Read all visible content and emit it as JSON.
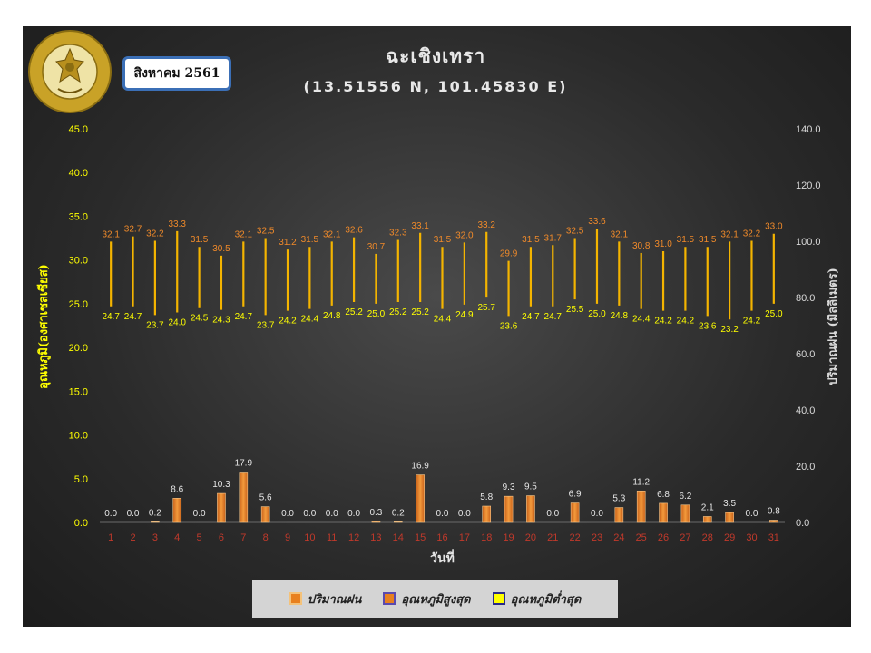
{
  "header": {
    "title": "ฉะเชิงเทรา",
    "subtitle": "(13.51556 N, 101.45830 E)",
    "month_label": "สิงหาคม 2561",
    "logo": {
      "icon": "meteorological-department-seal-icon",
      "text": "METEOROLOGICAL DEPARTMENT"
    }
  },
  "legend": {
    "items": [
      {
        "label": "ปริมาณฝน",
        "color": "#e8801f",
        "border": "#f4c27a"
      },
      {
        "label": "อุณหภูมิสูงสุด",
        "color": "#e8801f",
        "border": "#5a4ab0"
      },
      {
        "label": "อุณหภูมิต่ำสุด",
        "color": "#ffff00",
        "border": "#2a2a8a"
      }
    ]
  },
  "chart_data": {
    "type": "bar",
    "title": "ฉะเชิงเทรา",
    "subtitle": "(13.51556 N, 101.45830 E)",
    "xlabel": "วันที่",
    "ylabel_left": "อุณหภูมิ(องศาเซลเซียส)",
    "ylabel_right": "ปริมาณฝน (มิลลิเมตร)",
    "ylim_left": [
      0,
      45
    ],
    "yticks_left": [
      "0.0",
      "5.0",
      "10.0",
      "15.0",
      "20.0",
      "25.0",
      "30.0",
      "35.0",
      "40.0",
      "45.0"
    ],
    "ylim_right": [
      0,
      140
    ],
    "yticks_right": [
      "0.0",
      "20.0",
      "40.0",
      "60.0",
      "80.0",
      "100.0",
      "120.0",
      "140.0"
    ],
    "categories": [
      "1",
      "2",
      "3",
      "4",
      "5",
      "6",
      "7",
      "8",
      "9",
      "10",
      "11",
      "12",
      "13",
      "14",
      "15",
      "16",
      "17",
      "18",
      "19",
      "20",
      "21",
      "22",
      "23",
      "24",
      "25",
      "26",
      "27",
      "28",
      "29",
      "30",
      "31"
    ],
    "series": [
      {
        "name": "ปริมาณฝน",
        "axis": "right",
        "color": "#e8801f",
        "values": [
          0.0,
          0.0,
          0.2,
          8.6,
          0.0,
          10.3,
          17.9,
          5.6,
          0.0,
          0.0,
          0.0,
          0.0,
          0.3,
          0.2,
          16.9,
          0.0,
          0.0,
          5.8,
          9.3,
          9.5,
          0.0,
          6.9,
          0.0,
          5.3,
          11.2,
          6.8,
          6.2,
          2.1,
          3.5,
          0.0,
          0.8
        ]
      },
      {
        "name": "อุณหภูมิสูงสุด",
        "axis": "left",
        "color": "#e8801f",
        "values": [
          32.1,
          32.7,
          32.2,
          33.3,
          31.5,
          30.5,
          32.1,
          32.5,
          31.2,
          31.5,
          32.1,
          32.6,
          30.7,
          32.3,
          33.1,
          31.5,
          32.0,
          33.2,
          29.9,
          31.5,
          31.7,
          32.5,
          33.6,
          32.1,
          30.8,
          31.0,
          31.5,
          31.5,
          32.1,
          32.2,
          33.0
        ]
      },
      {
        "name": "อุณหภูมิต่ำสุด",
        "axis": "left",
        "color": "#ffff00",
        "values": [
          24.7,
          24.7,
          23.7,
          24.0,
          24.5,
          24.3,
          24.7,
          23.7,
          24.2,
          24.4,
          24.8,
          25.2,
          25.0,
          25.2,
          25.2,
          24.4,
          24.9,
          25.7,
          23.6,
          24.7,
          24.7,
          25.5,
          25.0,
          24.8,
          24.4,
          24.2,
          24.2,
          23.6,
          23.2,
          24.2,
          25.0
        ]
      }
    ],
    "colors": {
      "left_axis": "#ffff00",
      "right_axis": "#d9d9d9",
      "x_ticks": "#c0392b",
      "grid": "none"
    }
  }
}
